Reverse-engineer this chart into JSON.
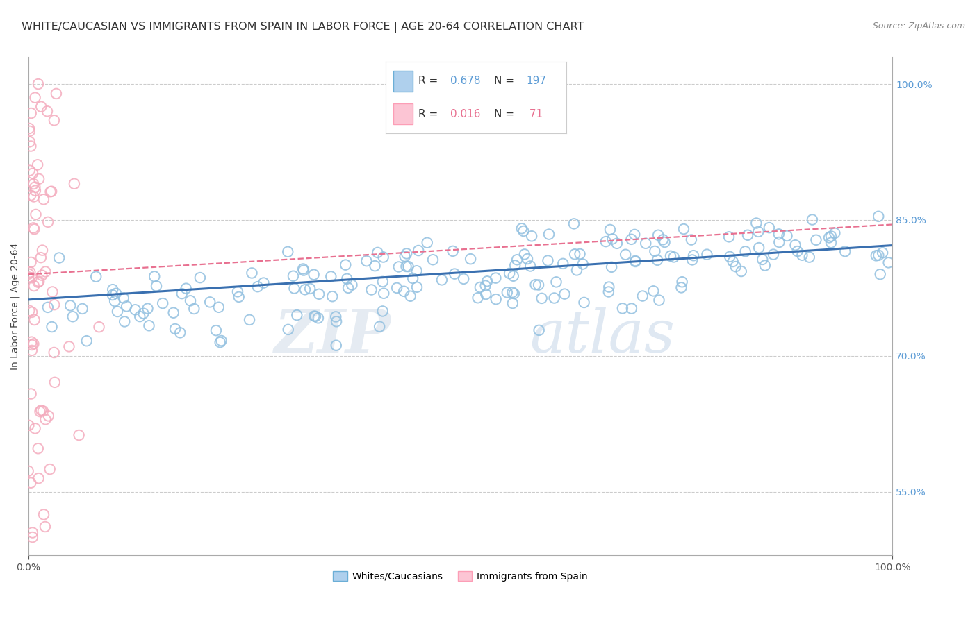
{
  "title": "WHITE/CAUCASIAN VS IMMIGRANTS FROM SPAIN IN LABOR FORCE | AGE 20-64 CORRELATION CHART",
  "source": "Source: ZipAtlas.com",
  "ylabel": "In Labor Force | Age 20-64",
  "right_yticks": [
    55.0,
    70.0,
    85.0,
    100.0
  ],
  "blue_R": 0.678,
  "blue_N": 197,
  "pink_R": 0.016,
  "pink_N": 71,
  "blue_color": "#92C0E0",
  "pink_color": "#F4ACBE",
  "blue_line_color": "#3A70B0",
  "pink_line_color": "#E87090",
  "legend_label_blue": "Whites/Caucasians",
  "legend_label_pink": "Immigrants from Spain",
  "watermark_zip": "ZIP",
  "watermark_atlas": "atlas",
  "xmin": 0.0,
  "xmax": 1.0,
  "ymin": 0.48,
  "ymax": 1.03,
  "blue_trend_start_y": 0.762,
  "blue_trend_end_y": 0.822,
  "pink_trend_start_y": 0.79,
  "pink_trend_end_y": 0.845,
  "grid_color": "#cccccc",
  "background_color": "#ffffff",
  "title_fontsize": 11.5,
  "axis_label_fontsize": 10,
  "tick_fontsize": 10,
  "legend_R_color": "#5b9bd5",
  "legend_N_color": "#5b9bd5",
  "legend_pink_R_color": "#E87090",
  "legend_pink_N_color": "#E87090"
}
